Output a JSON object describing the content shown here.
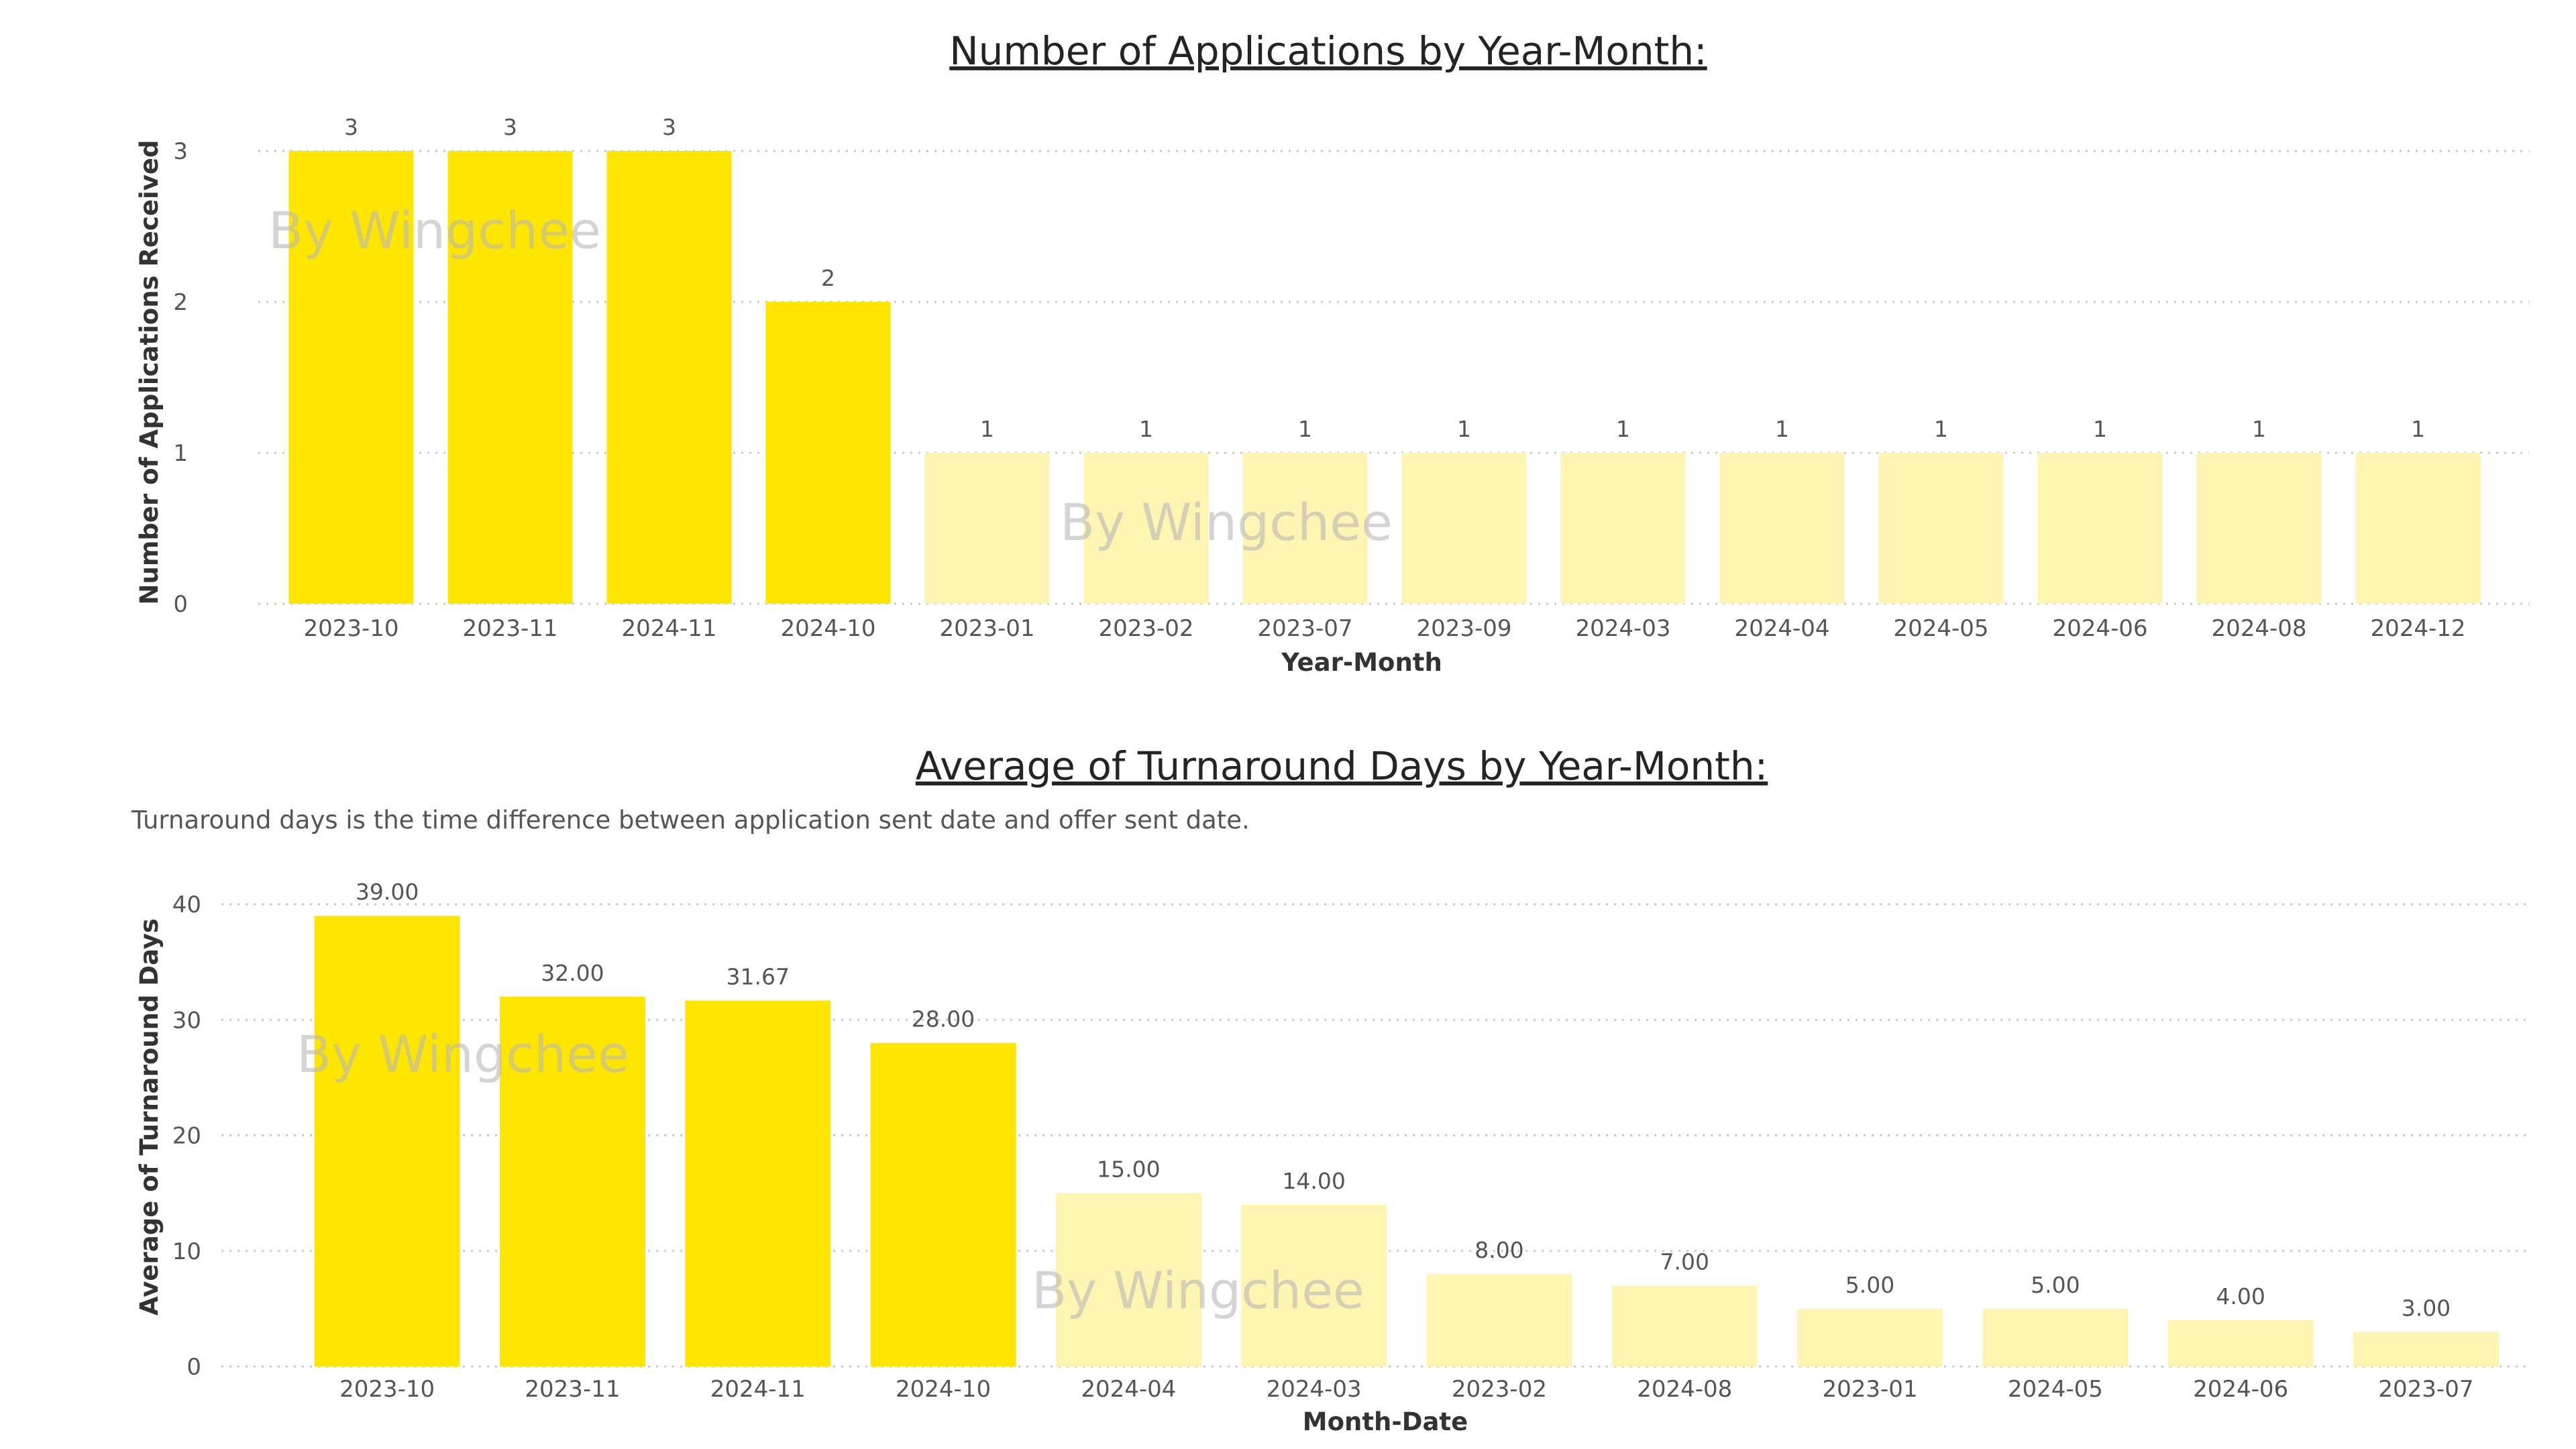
{
  "colors": {
    "highlight": "#FFE600",
    "faded": "#FFF5B3"
  },
  "chart_data": [
    {
      "type": "bar",
      "title": "Number of Applications by Year-Month:",
      "subtitle": "",
      "xlabel": "Year-Month",
      "ylabel": "Number of Applications Received",
      "ylim": [
        0,
        3
      ],
      "yticks": [
        0,
        1,
        2,
        3
      ],
      "grid": true,
      "categories": [
        "2023-10",
        "2023-11",
        "2024-11",
        "2024-10",
        "2023-01",
        "2023-02",
        "2023-07",
        "2023-09",
        "2024-03",
        "2024-04",
        "2024-05",
        "2024-06",
        "2024-08",
        "2024-12"
      ],
      "values": [
        3,
        3,
        3,
        2,
        1,
        1,
        1,
        1,
        1,
        1,
        1,
        1,
        1,
        1
      ],
      "labels": [
        "3",
        "3",
        "3",
        "2",
        "1",
        "1",
        "1",
        "1",
        "1",
        "1",
        "1",
        "1",
        "1",
        "1"
      ],
      "highlighted": [
        true,
        true,
        true,
        true,
        false,
        false,
        false,
        false,
        false,
        false,
        false,
        false,
        false,
        false
      ],
      "watermarks": [
        "By Wingchee",
        "By Wingchee"
      ]
    },
    {
      "type": "bar",
      "title": "Average of Turnaround Days by Year-Month:",
      "subtitle": "Turnaround days is the time difference between application sent date and offer sent date.",
      "xlabel": "Month-Date",
      "ylabel": "Average of Turnaround Days",
      "ylim": [
        0,
        40
      ],
      "yticks": [
        0,
        10,
        20,
        30,
        40
      ],
      "grid": true,
      "categories": [
        "2023-10",
        "2023-11",
        "2024-11",
        "2024-10",
        "2024-04",
        "2024-03",
        "2023-02",
        "2024-08",
        "2023-01",
        "2024-05",
        "2024-06",
        "2023-07"
      ],
      "values": [
        39.0,
        32.0,
        31.67,
        28.0,
        15.0,
        14.0,
        8.0,
        7.0,
        5.0,
        5.0,
        4.0,
        3.0
      ],
      "labels": [
        "39.00",
        "32.00",
        "31.67",
        "28.00",
        "15.00",
        "14.00",
        "8.00",
        "7.00",
        "5.00",
        "5.00",
        "4.00",
        "3.00"
      ],
      "highlighted": [
        true,
        true,
        true,
        true,
        false,
        false,
        false,
        false,
        false,
        false,
        false,
        false
      ],
      "watermarks": [
        "By Wingchee",
        "By Wingchee"
      ]
    }
  ]
}
